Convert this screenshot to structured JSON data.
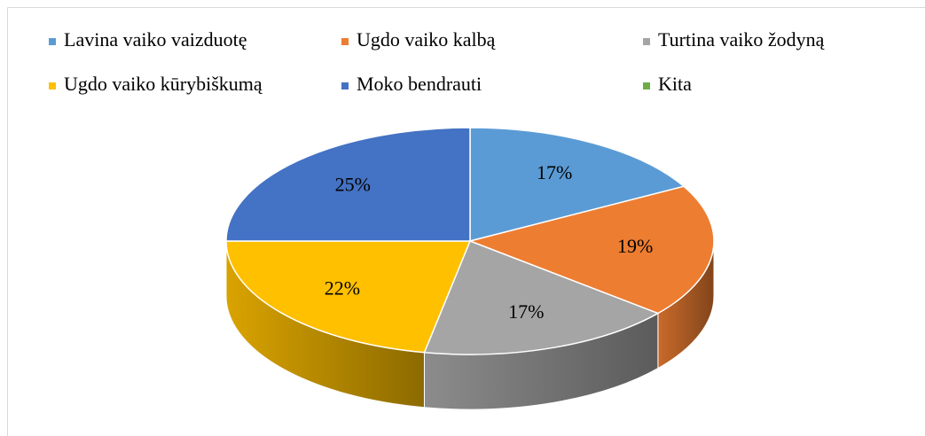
{
  "chart_data": {
    "type": "pie",
    "categories": [
      "Lavina vaiko vaizduotę",
      "Ugdo vaiko kalbą",
      "Turtina vaiko žodyną",
      "Ugdo vaiko kūrybiškumą",
      "Moko bendrauti",
      "Kita"
    ],
    "values": [
      17,
      19,
      17,
      22,
      25,
      0
    ],
    "value_labels": [
      "17%",
      "19%",
      "17%",
      "22%",
      "25%",
      null
    ],
    "colors": [
      "#5b9bd5",
      "#ed7d31",
      "#a5a5a5",
      "#ffc000",
      "#4472c4",
      "#70ad47"
    ],
    "legend": "top",
    "three_d": true
  }
}
